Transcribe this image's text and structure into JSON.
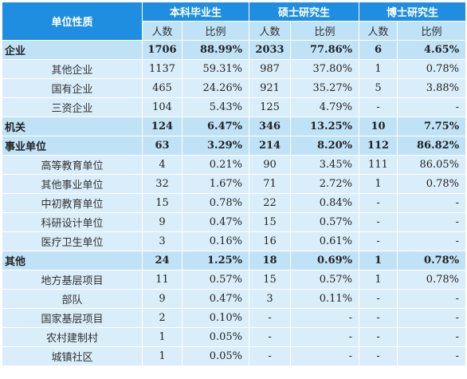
{
  "header": {
    "corner_label": "单位性质",
    "groups": [
      "本科毕业生",
      "硕士研究生",
      "博士研究生"
    ],
    "subcols": [
      "人数",
      "比例"
    ]
  },
  "rows": [
    {
      "type": "major",
      "name": "企业",
      "cells": [
        "1706",
        "88.99%",
        "2033",
        "77.86%",
        "6",
        "4.65%"
      ]
    },
    {
      "type": "minor",
      "name": "其他企业",
      "cells": [
        "1137",
        "59.31%",
        "987",
        "37.80%",
        "1",
        "0.78%"
      ]
    },
    {
      "type": "minor",
      "name": "国有企业",
      "cells": [
        "465",
        "24.26%",
        "921",
        "35.27%",
        "5",
        "3.88%"
      ]
    },
    {
      "type": "minor",
      "name": "三资企业",
      "cells": [
        "104",
        "5.43%",
        "125",
        "4.79%",
        "-",
        "-"
      ]
    },
    {
      "type": "major",
      "name": "机关",
      "cells": [
        "124",
        "6.47%",
        "346",
        "13.25%",
        "10",
        "7.75%"
      ]
    },
    {
      "type": "major",
      "name": "事业单位",
      "cells": [
        "63",
        "3.29%",
        "214",
        "8.20%",
        "112",
        "86.82%"
      ]
    },
    {
      "type": "minor",
      "name": "高等教育单位",
      "cells": [
        "4",
        "0.21%",
        "90",
        "3.45%",
        "111",
        "86.05%"
      ]
    },
    {
      "type": "minor",
      "name": "其他事业单位",
      "cells": [
        "32",
        "1.67%",
        "71",
        "2.72%",
        "1",
        "0.78%"
      ]
    },
    {
      "type": "minor",
      "name": "中初教育单位",
      "cells": [
        "15",
        "0.78%",
        "22",
        "0.84%",
        "-",
        "-"
      ]
    },
    {
      "type": "minor",
      "name": "科研设计单位",
      "cells": [
        "9",
        "0.47%",
        "15",
        "0.57%",
        "-",
        "-"
      ]
    },
    {
      "type": "minor",
      "name": "医疗卫生单位",
      "cells": [
        "3",
        "0.16%",
        "16",
        "0.61%",
        "-",
        "-"
      ]
    },
    {
      "type": "major",
      "name": "其他",
      "cells": [
        "24",
        "1.25%",
        "18",
        "0.69%",
        "1",
        "0.78%"
      ]
    },
    {
      "type": "minor",
      "name": "地方基层项目",
      "cells": [
        "11",
        "0.57%",
        "15",
        "0.57%",
        "1",
        "0.78%"
      ]
    },
    {
      "type": "minor",
      "name": "部队",
      "cells": [
        "9",
        "0.47%",
        "3",
        "0.11%",
        "-",
        "-"
      ]
    },
    {
      "type": "minor",
      "name": "国家基层项目",
      "cells": [
        "2",
        "0.10%",
        "-",
        "-",
        "-",
        "-"
      ]
    },
    {
      "type": "minor",
      "name": "农村建制村",
      "cells": [
        "1",
        "0.05%",
        "-",
        "-",
        "-",
        "-"
      ]
    },
    {
      "type": "minor",
      "name": "城镇社区",
      "cells": [
        "1",
        "0.05%",
        "-",
        "-",
        "-",
        "-"
      ]
    }
  ],
  "colors": {
    "header_blue": "#1f8ee0",
    "major_row": "#bfe2f7",
    "minor_row": "#d9eefa"
  }
}
